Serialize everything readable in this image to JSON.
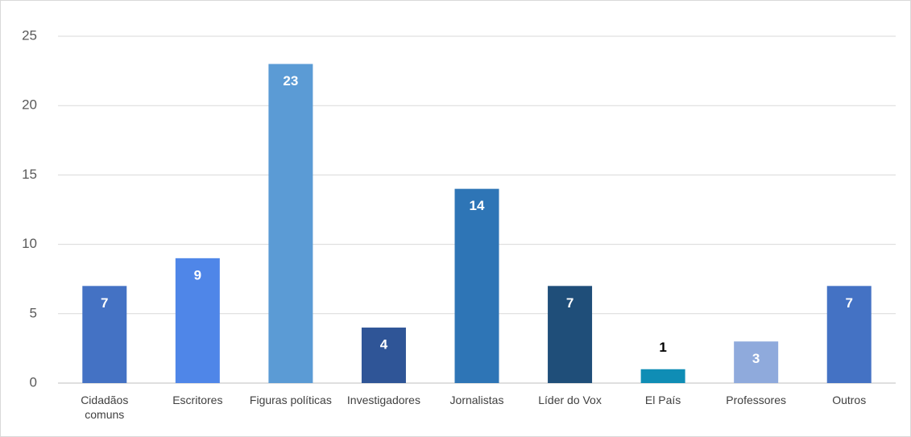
{
  "chart_data": {
    "type": "bar",
    "categories": [
      "Cidadãos comuns",
      "Escritores",
      "Figuras políticas",
      "Investigadores",
      "Jornalistas",
      "Líder do Vox",
      "El País",
      "Professores",
      "Outros"
    ],
    "values": [
      7,
      9,
      23,
      4,
      14,
      7,
      1,
      3,
      7
    ],
    "colors": [
      "#4472c4",
      "#4f86e8",
      "#5b9bd5",
      "#2f5597",
      "#2e75b6",
      "#1f4e79",
      "#0f8db5",
      "#8faadc",
      "#4472c4"
    ],
    "ylim": [
      0,
      25
    ],
    "yticks": [
      0,
      5,
      10,
      15,
      20,
      25
    ],
    "grid": true
  }
}
